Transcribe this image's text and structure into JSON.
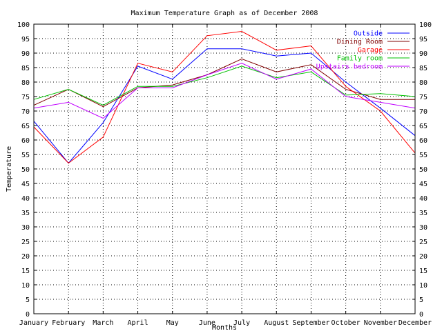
{
  "chart_data": {
    "type": "line",
    "title": "Maximum Temperature Graph as of December 2008",
    "xlabel": "Months",
    "ylabel": "Temperature",
    "ylim": [
      0,
      100
    ],
    "ytick_step": 5,
    "grid": true,
    "legend_position": "top-right",
    "categories": [
      "January",
      "February",
      "March",
      "April",
      "May",
      "June",
      "July",
      "August",
      "September",
      "October",
      "November",
      "December"
    ],
    "series": [
      {
        "name": "Outside",
        "color": "#0000ff",
        "values": [
          66.5,
          52,
          66,
          85.5,
          81,
          91.5,
          91.5,
          89,
          90,
          80,
          71,
          61.5
        ]
      },
      {
        "name": "Dining Room",
        "color": "#800000",
        "values": [
          72,
          77.5,
          71.5,
          78,
          79,
          82.5,
          88,
          83.5,
          86,
          77.5,
          74,
          74
        ]
      },
      {
        "name": "Garage",
        "color": "#ff0000",
        "values": [
          64.5,
          52,
          61,
          86.5,
          83.5,
          96,
          97.5,
          91,
          92.5,
          78.5,
          70,
          55.5
        ]
      },
      {
        "name": "Family room",
        "color": "#00c000",
        "values": [
          74,
          77.5,
          72,
          78.5,
          78.5,
          81.5,
          85.5,
          81.5,
          83.5,
          75.5,
          76,
          75
        ]
      },
      {
        "name": "Upstairs bedroom",
        "color": "#c000ff",
        "values": [
          71,
          73,
          67.5,
          78,
          78,
          82.5,
          86.5,
          81,
          84.5,
          75,
          73,
          71
        ]
      }
    ]
  }
}
